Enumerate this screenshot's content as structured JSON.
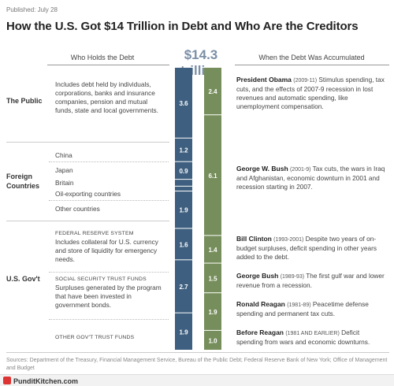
{
  "published": "Published: July 28",
  "title": "How the U.S. Got $14 Trillion in Debt and Who Are the Creditors",
  "headers": {
    "left": "Who Holds the Debt",
    "right": "When the Debt Was Accumulated",
    "total": "$14.3 trillion"
  },
  "groups": {
    "public": "The Public",
    "foreign": "Foreign Countries",
    "govt": "U.S. Gov't"
  },
  "holders_text": {
    "public_desc": "Includes debt held by individuals, corporations, banks and insurance companies, pension and mutual funds, state and local governments.",
    "china": "China",
    "japan": "Japan",
    "britain": "Britain",
    "oil": "Oil-exporting countries",
    "other": "Other countries",
    "fed_head": "FEDERAL RESERVE SYSTEM",
    "fed_desc": "Includes collateral for U.S. currency and store of liquidity for emergency needs.",
    "ss_head": "SOCIAL SECURITY TRUST FUNDS",
    "ss_desc": "Surpluses generated by the program that have been invested in government bonds.",
    "other_trust": "OTHER GOV'T TRUST FUNDS"
  },
  "periods": [
    {
      "name": "President Obama",
      "years": "(2009-11)",
      "text": "Stimulus spending, tax cuts, and the effects of 2007-9 recession in lost revenues and automatic spending, like unemployment compensation."
    },
    {
      "name": "George W. Bush",
      "years": "(2001-9)",
      "text": "Tax cuts, the wars in Iraq and Afghanistan, economic downturn in 2001 and recession starting in 2007."
    },
    {
      "name": "Bill Clinton",
      "years": "(1993-2001)",
      "text": "Despite two years of on-budget surpluses, deficit spending in other years added to the debt."
    },
    {
      "name": "George Bush",
      "years": "(1989-93)",
      "text": "The first gulf war and lower revenue from a recession."
    },
    {
      "name": "Ronald Reagan",
      "years": "(1981-89)",
      "text": "Peacetime defense spending and permanent tax cuts."
    },
    {
      "name": "Before Reagan",
      "years": "(1981 AND EARLIER)",
      "text": "Deficit spending from wars and economic downturns."
    }
  ],
  "sources": "Sources: Department of the Treasury, Financial Management Service, Bureau of the Public Debt; Federal Reserve Bank of New York; Office of Management and Budget",
  "footer": "PunditKitchen.com",
  "colors": {
    "holders": "#3e5f7f",
    "periods": "#768e5b",
    "total": "#7b8fa6"
  },
  "chart_data": [
    {
      "type": "bar",
      "title": "Who Holds the Debt",
      "orientation": "stacked-vertical",
      "unit": "trillion",
      "segments": [
        {
          "category": "The Public",
          "value": 3.6,
          "label": "3.6"
        },
        {
          "category": "China",
          "value": 1.2,
          "label": "1.2"
        },
        {
          "category": "Japan",
          "value": 0.9,
          "label": "0.9"
        },
        {
          "category": "Britain",
          "value": 0.35,
          "label": ""
        },
        {
          "category": "Oil-exporting countries",
          "value": 0.25,
          "label": ""
        },
        {
          "category": "Other countries",
          "value": 1.9,
          "label": "1.9"
        },
        {
          "category": "Federal Reserve System",
          "value": 1.6,
          "label": "1.6"
        },
        {
          "category": "Social Security Trust Funds",
          "value": 2.7,
          "label": "2.7"
        },
        {
          "category": "Other Gov't Trust Funds",
          "value": 1.9,
          "label": "1.9"
        }
      ]
    },
    {
      "type": "bar",
      "title": "When the Debt Was Accumulated",
      "orientation": "stacked-vertical",
      "unit": "trillion",
      "segments": [
        {
          "category": "President Obama",
          "value": 2.4,
          "label": "2.4"
        },
        {
          "category": "George W. Bush",
          "value": 6.1,
          "label": "6.1"
        },
        {
          "category": "Bill Clinton",
          "value": 1.4,
          "label": "1.4"
        },
        {
          "category": "George Bush",
          "value": 1.5,
          "label": "1.5"
        },
        {
          "category": "Ronald Reagan",
          "value": 1.9,
          "label": "1.9"
        },
        {
          "category": "Before Reagan",
          "value": 1.0,
          "label": "1.0"
        }
      ]
    }
  ]
}
